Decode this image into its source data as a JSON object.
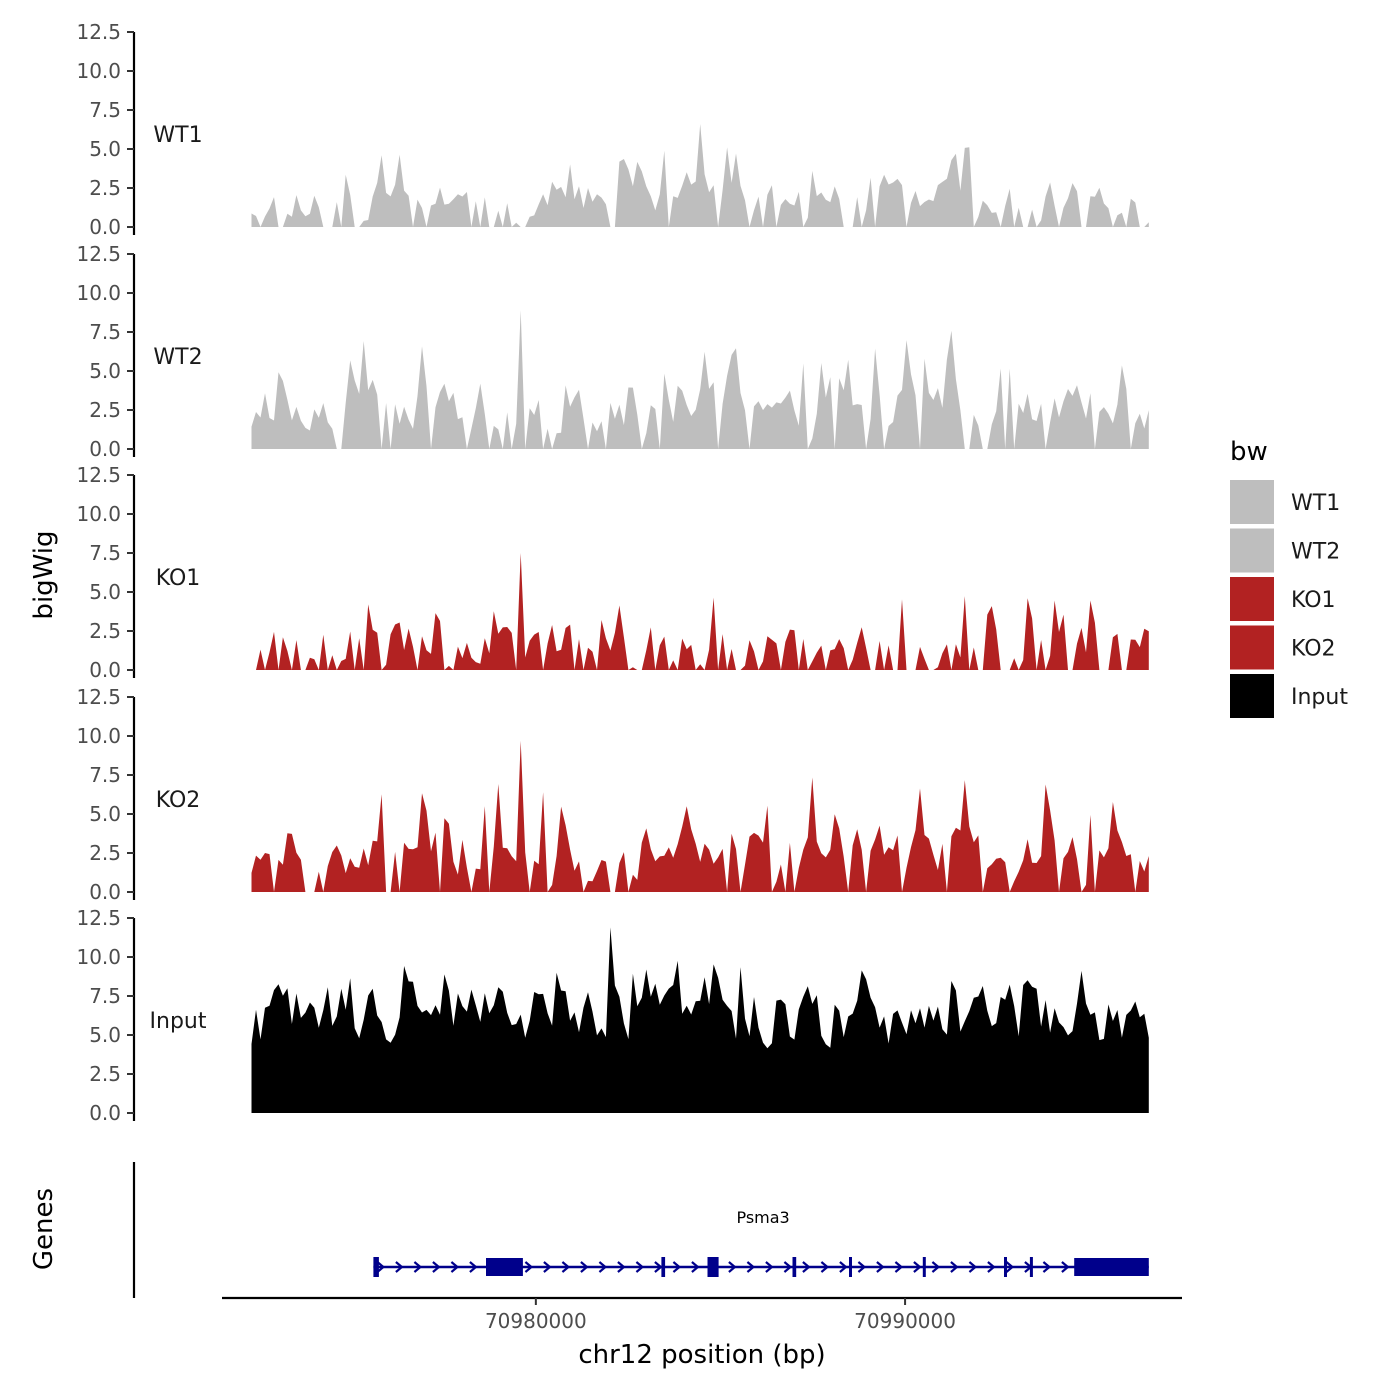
{
  "chart_data": {
    "type": "area",
    "chromosome": "chr12",
    "x_range_bp": [
      70971500,
      70997500
    ],
    "region_bp": [
      70972300,
      70996600
    ],
    "ylabel": "bigWig",
    "genes_label": "Genes",
    "xlabel": "chr12 position (bp)",
    "x_ticks": [
      {
        "value": 70980000,
        "label": "70980000"
      },
      {
        "value": 70990000,
        "label": "70990000"
      }
    ],
    "ylim": [
      0,
      12.5
    ],
    "y_ticks": [
      "0.0",
      "2.5",
      "5.0",
      "7.5",
      "10.0",
      "12.5"
    ],
    "y_tick_values": [
      0,
      2.5,
      5.0,
      7.5,
      10.0,
      12.5
    ],
    "legend": {
      "title": "bw",
      "entries": [
        {
          "label": "WT1",
          "color": "#bebebe"
        },
        {
          "label": "WT2",
          "color": "#bebebe"
        },
        {
          "label": "KO1",
          "color": "#b22222"
        },
        {
          "label": "KO2",
          "color": "#b22222"
        },
        {
          "label": "Input",
          "color": "#000000"
        }
      ]
    },
    "series": [
      {
        "name": "WT1",
        "color": "#bebebe",
        "seed": 11,
        "peak": 6.6,
        "gap": 0.26,
        "base": 0.4
      },
      {
        "name": "WT2",
        "color": "#bebebe",
        "seed": 23,
        "peak": 8.9,
        "gap": 0.12,
        "base": 0.8
      },
      {
        "name": "KO1",
        "color": "#b22222",
        "seed": 37,
        "peak": 7.5,
        "gap": 0.33,
        "base": 0.2
      },
      {
        "name": "KO2",
        "color": "#b22222",
        "seed": 51,
        "peak": 9.7,
        "gap": 0.14,
        "base": 0.5
      },
      {
        "name": "Input",
        "color": "#000000",
        "seed": 73,
        "peak": 11.9,
        "gap": 0.0,
        "base": 3.5
      }
    ],
    "gene": {
      "name": "Psma3",
      "color": "#00008b",
      "strand": "+",
      "start_bp": 70975600,
      "end_bp": 70996600,
      "exons_bp": [
        [
          70975600,
          70975750
        ],
        [
          70978650,
          70979650
        ],
        [
          70983400,
          70983500
        ],
        [
          70984650,
          70984950
        ],
        [
          70986950,
          70987050
        ],
        [
          70988480,
          70988560
        ],
        [
          70990480,
          70990560
        ],
        [
          70992680,
          70992760
        ],
        [
          70993380,
          70993460
        ],
        [
          70994580,
          70996600
        ]
      ]
    }
  }
}
